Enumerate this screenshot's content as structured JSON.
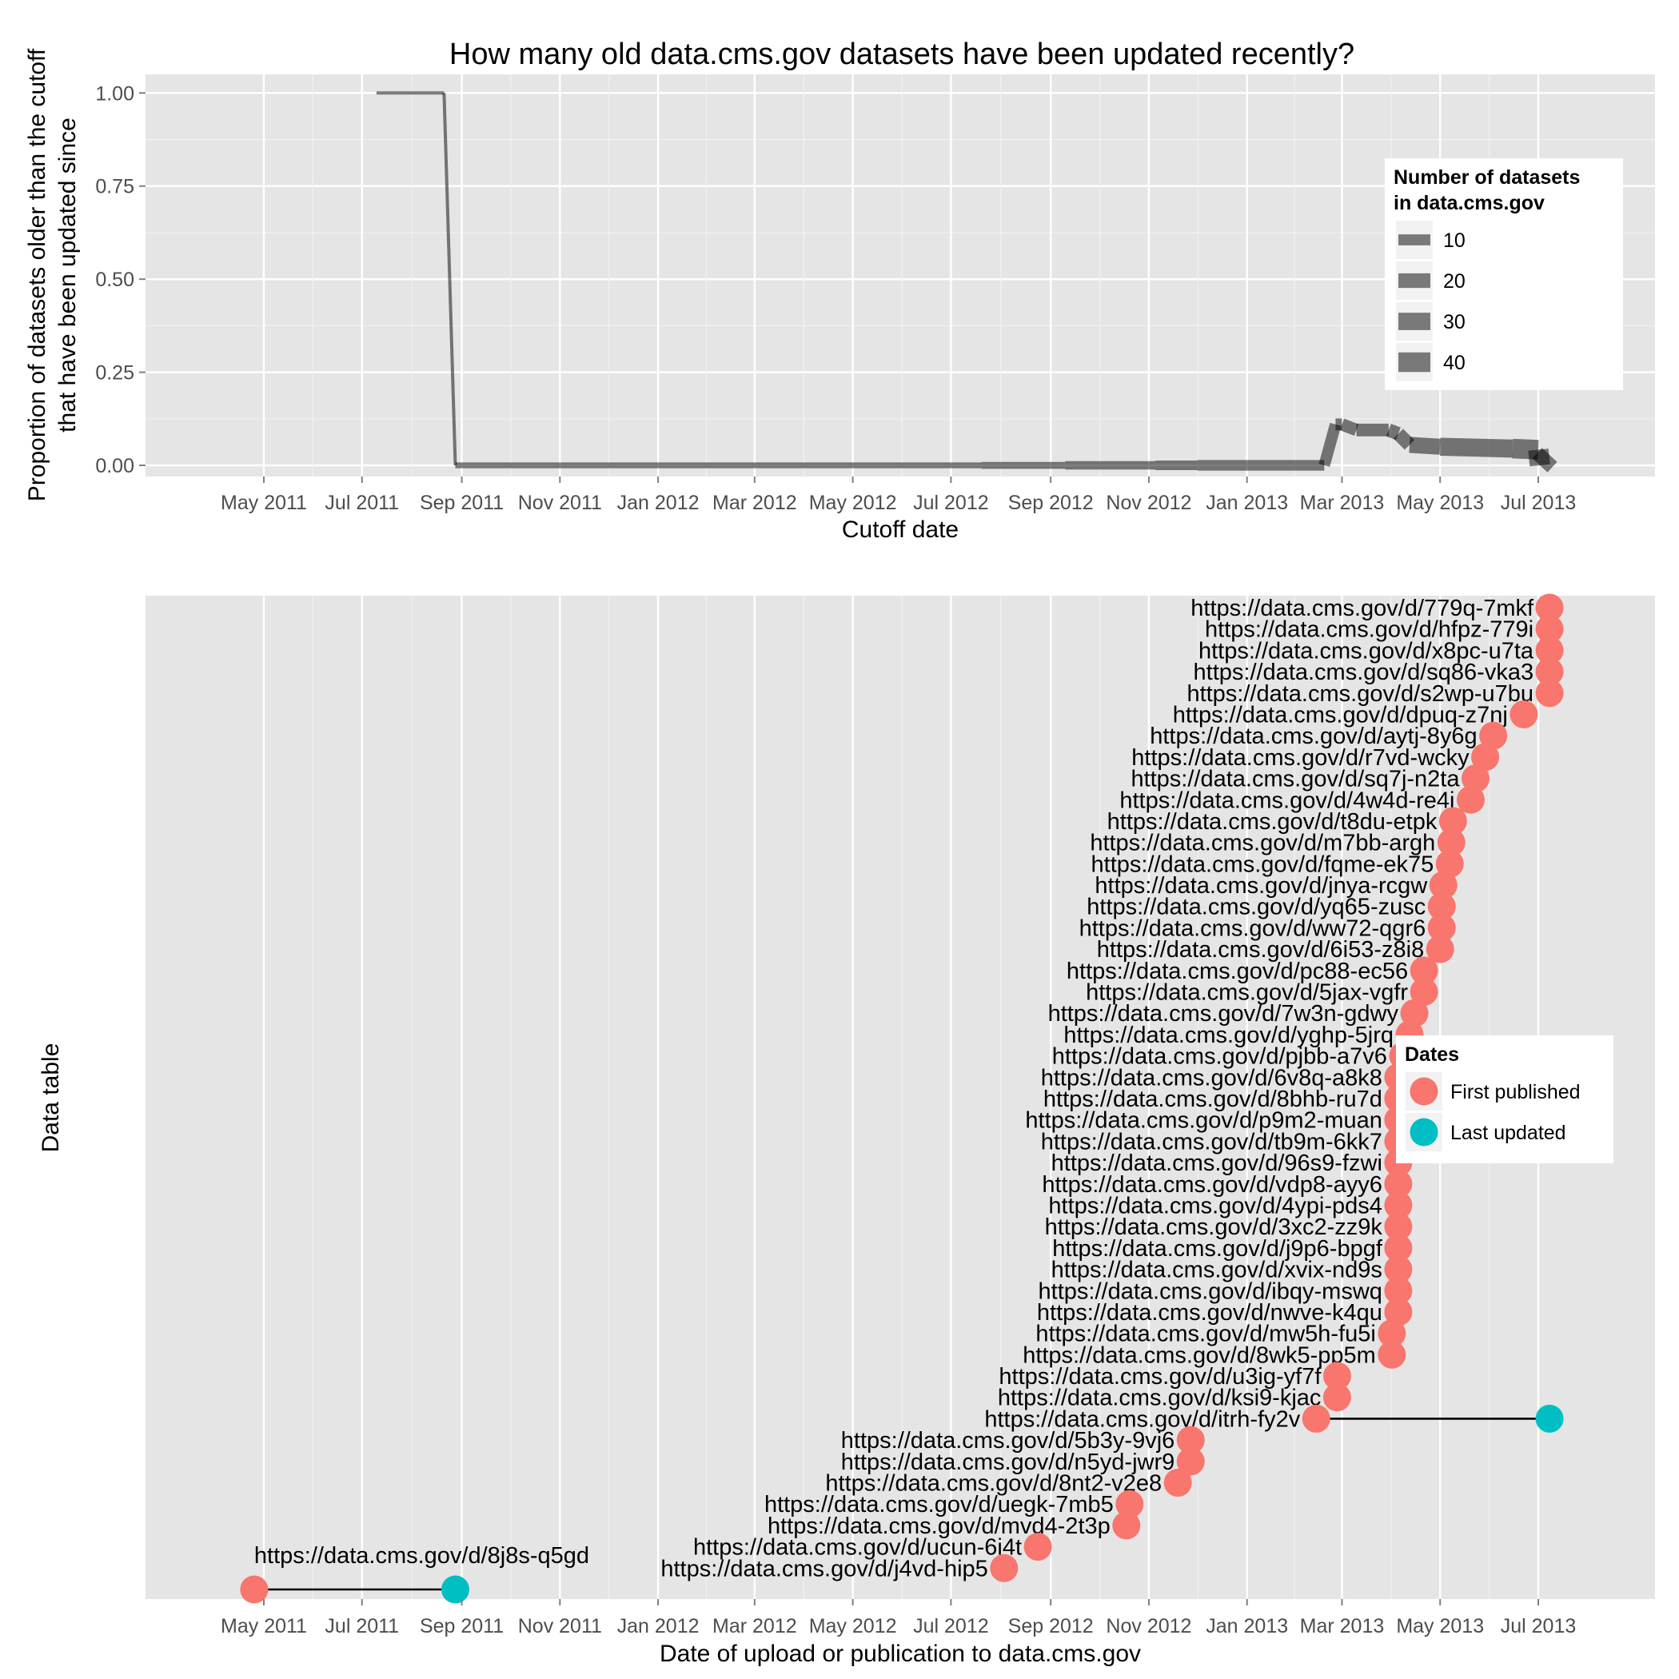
{
  "chart_data": [
    {
      "type": "line",
      "title": "How many old data.cms.gov datasets have been updated recently?",
      "xlabel": "Cutoff date",
      "ylabel_line1": "Proportion of datasets older than the cutoff",
      "ylabel_line2": "that have been updated since",
      "x_ticks": [
        "May 2011",
        "Jul 2011",
        "Sep 2011",
        "Nov 2011",
        "Jan 2012",
        "Mar 2012",
        "May 2012",
        "Jul 2012",
        "Sep 2012",
        "Nov 2012",
        "Jan 2013",
        "Mar 2013",
        "May 2013",
        "Jul 2013"
      ],
      "y_ticks": [
        "0.00",
        "0.25",
        "0.50",
        "0.75",
        "1.00"
      ],
      "ylim": [
        -0.03,
        1.05
      ],
      "grid": true,
      "legend": {
        "title_line1": "Number of datasets",
        "title_line2": "in data.cms.gov",
        "position": "right",
        "entries": [
          {
            "label": "10",
            "n": 10
          },
          {
            "label": "20",
            "n": 20
          },
          {
            "label": "30",
            "n": 30
          },
          {
            "label": "40",
            "n": 40
          }
        ]
      },
      "series": [
        {
          "points": [
            {
              "x": "2011-07-10",
              "y": 1.0,
              "n": 1
            },
            {
              "x": "2011-08-21",
              "y": 1.0,
              "n": 1
            },
            {
              "x": "2011-08-28",
              "y": 0.0,
              "n": 2
            },
            {
              "x": "2012-01-01",
              "y": 0.0,
              "n": 2
            },
            {
              "x": "2012-07-20",
              "y": 0.0,
              "n": 3
            },
            {
              "x": "2012-09-10",
              "y": 0.0,
              "n": 5
            },
            {
              "x": "2012-11-05",
              "y": 0.0,
              "n": 7
            },
            {
              "x": "2012-12-01",
              "y": 0.0,
              "n": 9
            },
            {
              "x": "2013-02-18",
              "y": 0.0,
              "n": 11
            },
            {
              "x": "2013-02-25",
              "y": 0.11,
              "n": 12
            },
            {
              "x": "2013-03-01",
              "y": 0.11,
              "n": 13
            },
            {
              "x": "2013-03-10",
              "y": 0.095,
              "n": 14
            },
            {
              "x": "2013-03-30",
              "y": 0.095,
              "n": 16
            },
            {
              "x": "2013-04-05",
              "y": 0.085,
              "n": 17
            },
            {
              "x": "2013-04-12",
              "y": 0.055,
              "n": 25
            },
            {
              "x": "2013-05-01",
              "y": 0.05,
              "n": 33
            },
            {
              "x": "2013-06-15",
              "y": 0.045,
              "n": 40
            },
            {
              "x": "2013-07-01",
              "y": 0.042,
              "n": 44
            },
            {
              "x": "2013-07-02",
              "y": 0.0,
              "n": 45
            },
            {
              "x": "2013-07-08",
              "y": 0.028,
              "n": 46
            }
          ]
        }
      ]
    },
    {
      "type": "scatter",
      "xlabel": "Date of upload or publication to data.cms.gov",
      "ylabel": "Data table",
      "x_ticks": [
        "May 2011",
        "Jul 2011",
        "Sep 2011",
        "Nov 2011",
        "Jan 2012",
        "Mar 2012",
        "May 2012",
        "Jul 2012",
        "Sep 2012",
        "Nov 2012",
        "Jan 2013",
        "Mar 2013",
        "May 2013",
        "Jul 2013"
      ],
      "grid": true,
      "legend": {
        "title": "Dates",
        "position": "right",
        "entries": [
          {
            "label": "First published",
            "color": "#F8766D"
          },
          {
            "label": "Last updated",
            "color": "#00BFC4"
          }
        ]
      },
      "datasets": [
        {
          "url": "https://data.cms.gov/d/8j8s-q5gd",
          "first": "2011-04-25",
          "last": "2011-08-28"
        },
        {
          "url": "https://data.cms.gov/d/j4vd-hip5",
          "first": "2012-08-03"
        },
        {
          "url": "https://data.cms.gov/d/ucun-6i4t",
          "first": "2012-08-24"
        },
        {
          "url": "https://data.cms.gov/d/mvd4-2t3p",
          "first": "2012-10-18"
        },
        {
          "url": "https://data.cms.gov/d/uegk-7mb5",
          "first": "2012-10-20"
        },
        {
          "url": "https://data.cms.gov/d/8nt2-v2e8",
          "first": "2012-11-19"
        },
        {
          "url": "https://data.cms.gov/d/n5yd-jwr9",
          "first": "2012-11-27"
        },
        {
          "url": "https://data.cms.gov/d/5b3y-9vj6",
          "first": "2012-11-27"
        },
        {
          "url": "https://data.cms.gov/d/itrh-fy2v",
          "first": "2013-02-13",
          "last": "2013-07-08"
        },
        {
          "url": "https://data.cms.gov/d/ksi9-kjac",
          "first": "2013-02-26"
        },
        {
          "url": "https://data.cms.gov/d/u3ig-yf7f",
          "first": "2013-02-26"
        },
        {
          "url": "https://data.cms.gov/d/8wk5-pp5m",
          "first": "2013-04-01"
        },
        {
          "url": "https://data.cms.gov/d/mw5h-fu5i",
          "first": "2013-04-01"
        },
        {
          "url": "https://data.cms.gov/d/nwve-k4qu",
          "first": "2013-04-05"
        },
        {
          "url": "https://data.cms.gov/d/ibqy-mswq",
          "first": "2013-04-05"
        },
        {
          "url": "https://data.cms.gov/d/xvix-nd9s",
          "first": "2013-04-05"
        },
        {
          "url": "https://data.cms.gov/d/j9p6-bpgf",
          "first": "2013-04-05"
        },
        {
          "url": "https://data.cms.gov/d/3xc2-zz9k",
          "first": "2013-04-05"
        },
        {
          "url": "https://data.cms.gov/d/4ypi-pds4",
          "first": "2013-04-05"
        },
        {
          "url": "https://data.cms.gov/d/vdp8-ayy6",
          "first": "2013-04-05"
        },
        {
          "url": "https://data.cms.gov/d/96s9-fzwi",
          "first": "2013-04-05"
        },
        {
          "url": "https://data.cms.gov/d/tb9m-6kk7",
          "first": "2013-04-05"
        },
        {
          "url": "https://data.cms.gov/d/p9m2-muan",
          "first": "2013-04-05"
        },
        {
          "url": "https://data.cms.gov/d/8bhb-ru7d",
          "first": "2013-04-05"
        },
        {
          "url": "https://data.cms.gov/d/6v8q-a8k8",
          "first": "2013-04-05"
        },
        {
          "url": "https://data.cms.gov/d/pjbb-a7v6",
          "first": "2013-04-08"
        },
        {
          "url": "https://data.cms.gov/d/yghp-5jrq",
          "first": "2013-04-12"
        },
        {
          "url": "https://data.cms.gov/d/7w3n-gdwy",
          "first": "2013-04-15"
        },
        {
          "url": "https://data.cms.gov/d/5jax-vgfr",
          "first": "2013-04-21"
        },
        {
          "url": "https://data.cms.gov/d/pc88-ec56",
          "first": "2013-04-21"
        },
        {
          "url": "https://data.cms.gov/d/6i53-z8i8",
          "first": "2013-05-01"
        },
        {
          "url": "https://data.cms.gov/d/ww72-qgr6",
          "first": "2013-05-02"
        },
        {
          "url": "https://data.cms.gov/d/yq65-zusc",
          "first": "2013-05-02"
        },
        {
          "url": "https://data.cms.gov/d/jnya-rcgw",
          "first": "2013-05-03"
        },
        {
          "url": "https://data.cms.gov/d/fqme-ek75",
          "first": "2013-05-07"
        },
        {
          "url": "https://data.cms.gov/d/m7bb-argh",
          "first": "2013-05-08"
        },
        {
          "url": "https://data.cms.gov/d/t8du-etpk",
          "first": "2013-05-09"
        },
        {
          "url": "https://data.cms.gov/d/4w4d-re4j",
          "first": "2013-05-20"
        },
        {
          "url": "https://data.cms.gov/d/sq7j-n2ta",
          "first": "2013-05-23"
        },
        {
          "url": "https://data.cms.gov/d/r7vd-wcky",
          "first": "2013-05-29"
        },
        {
          "url": "https://data.cms.gov/d/aytj-8y6g",
          "first": "2013-06-03"
        },
        {
          "url": "https://data.cms.gov/d/dpuq-z7nj",
          "first": "2013-06-22"
        },
        {
          "url": "https://data.cms.gov/d/s2wp-u7bu",
          "first": "2013-07-08"
        },
        {
          "url": "https://data.cms.gov/d/sq86-vka3",
          "first": "2013-07-08"
        },
        {
          "url": "https://data.cms.gov/d/x8pc-u7ta",
          "first": "2013-07-08"
        },
        {
          "url": "https://data.cms.gov/d/hfpz-779i",
          "first": "2013-07-08"
        },
        {
          "url": "https://data.cms.gov/d/779q-7mkf",
          "first": "2013-07-08"
        }
      ]
    }
  ]
}
